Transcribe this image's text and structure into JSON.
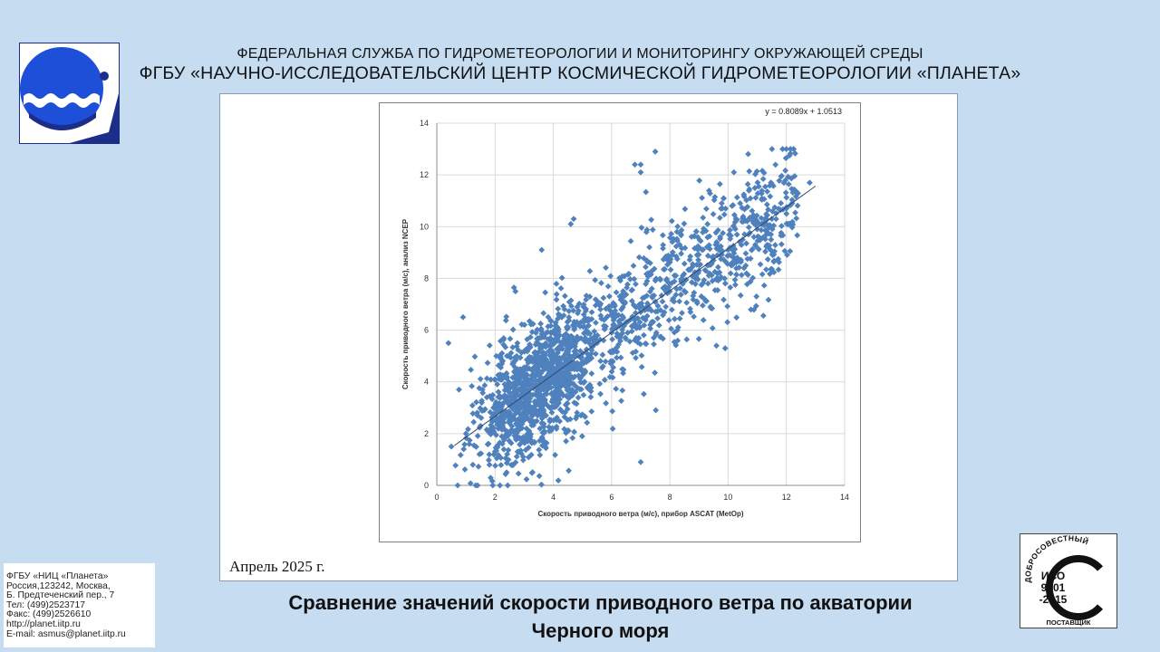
{
  "header": {
    "org_line1": "ФЕДЕРАЛЬНАЯ СЛУЖБА ПО ГИДРОМЕТЕОРОЛОГИИ И МОНИТОРИНГУ ОКРУЖАЮЩЕЙ СРЕДЫ",
    "org_line2": "ФГБУ «НАУЧНО-ИССЛЕДОВАТЕЛЬСКИЙ ЦЕНТР КОСМИЧЕСКОЙ ГИДРОМЕТЕОРОЛОГИИ «ПЛАНЕТА»"
  },
  "logo": {
    "icon": "planeta-logo-icon",
    "colors": {
      "blue": "#1d4fd8",
      "navy": "#1c2d8a"
    }
  },
  "date_label": "Апрель 2025 г.",
  "caption": {
    "line1": "Сравнение значений скорости приводного ветра по акватории",
    "line2": "Черного моря"
  },
  "contacts": [
    "ФГБУ «НИЦ «Планета»",
    "Россия,123242, Москва,",
    "Б. Предтеченский пер., 7",
    "Тел:   (499)2523717",
    "Факс: (499)2526610",
    "http://planet.iitp.ru",
    "E-mail: asmus@planet.iitp.ru"
  ],
  "iso_badge": {
    "top_text": "ДОБРОСОВЕСТНЫЙ",
    "bottom_text": "ПОСТАВЩИК",
    "line1": "ИСО",
    "line2": "9001",
    "line3": "-2015"
  },
  "chart_data": {
    "type": "scatter",
    "xlabel": "Скорость приводного ветра (м/с), прибор ASCAT (MetOp)",
    "ylabel": "Скорость приводного ветра (м/с), анализ NCEP",
    "xlim": [
      0,
      14
    ],
    "ylim": [
      0,
      14
    ],
    "xticks": [
      "0",
      "2",
      "4",
      "6",
      "8",
      "10",
      "12",
      "14"
    ],
    "yticks": [
      "0",
      "2",
      "4",
      "6",
      "8",
      "10",
      "12",
      "14"
    ],
    "grid": true,
    "marker_color": "#4f81bd",
    "trendline": {
      "equation": "y = 0.8089x + 1.0513",
      "slope": 0.8089,
      "intercept": 1.0513,
      "x_range": [
        0.6,
        13.0
      ]
    },
    "point_count": 1900,
    "points_sample": [
      [
        0.5,
        1.5
      ],
      [
        1.0,
        2.0
      ],
      [
        1.5,
        2.3
      ],
      [
        2.0,
        2.7
      ],
      [
        2.5,
        3.1
      ],
      [
        3.0,
        3.5
      ],
      [
        3.5,
        3.9
      ],
      [
        4.0,
        4.3
      ],
      [
        4.5,
        4.7
      ],
      [
        5.0,
        5.1
      ],
      [
        5.5,
        5.5
      ],
      [
        6.0,
        5.9
      ],
      [
        6.5,
        6.3
      ],
      [
        7.0,
        6.7
      ],
      [
        7.5,
        7.1
      ],
      [
        8.0,
        7.5
      ],
      [
        8.5,
        7.9
      ],
      [
        9.0,
        8.3
      ],
      [
        9.5,
        8.7
      ],
      [
        10.0,
        9.1
      ],
      [
        10.5,
        9.5
      ],
      [
        11.0,
        9.9
      ],
      [
        11.5,
        10.3
      ],
      [
        12.0,
        10.7
      ],
      [
        6.8,
        12.4
      ],
      [
        7.0,
        12.4
      ],
      [
        7.5,
        12.9
      ],
      [
        7.0,
        12.1
      ],
      [
        10.2,
        12.1
      ],
      [
        4.7,
        10.3
      ],
      [
        4.6,
        10.1
      ],
      [
        12.8,
        11.7
      ],
      [
        0.4,
        5.5
      ],
      [
        0.9,
        6.5
      ],
      [
        2.7,
        7.5
      ],
      [
        3.6,
        9.1
      ],
      [
        9.9,
        5.3
      ],
      [
        9.6,
        5.4
      ],
      [
        7.0,
        0.9
      ],
      [
        1.4,
        0.0
      ]
    ]
  }
}
